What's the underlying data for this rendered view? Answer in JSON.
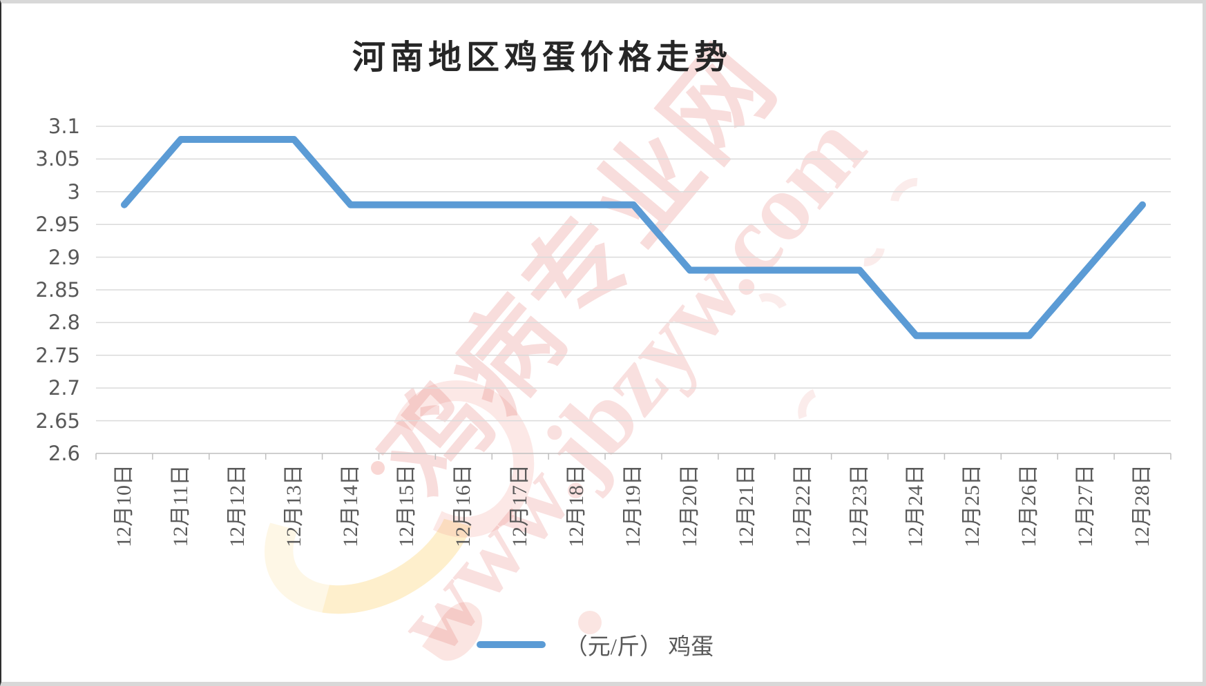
{
  "watermark": {
    "brand": "鸡病专业网",
    "url": "www.jbzyw.com"
  },
  "legend": {
    "label": "（元/斤） 鸡蛋"
  },
  "chart_data": {
    "type": "line",
    "title": "河南地区鸡蛋价格走势",
    "categories": [
      "12月10日",
      "12月11日",
      "12月12日",
      "12月13日",
      "12月14日",
      "12月15日",
      "12月16日",
      "12月17日",
      "12月18日",
      "12月19日",
      "12月20日",
      "12月21日",
      "12月22日",
      "12月23日",
      "12月24日",
      "12月25日",
      "12月26日",
      "12月27日",
      "12月28日"
    ],
    "series": [
      {
        "name": "鸡蛋",
        "unit": "元/斤",
        "values": [
          2.98,
          3.08,
          3.08,
          3.08,
          2.98,
          2.98,
          2.98,
          2.98,
          2.98,
          2.98,
          2.88,
          2.88,
          2.88,
          2.88,
          2.78,
          2.78,
          2.78,
          2.88,
          2.98
        ]
      }
    ],
    "ylim": [
      2.6,
      3.1
    ],
    "ytick_step": 0.05,
    "ytick_labels": [
      "3.1",
      "3.05",
      "3",
      "2.95",
      "2.9",
      "2.85",
      "2.8",
      "2.75",
      "2.7",
      "2.65",
      "2.6"
    ],
    "grid": true,
    "legend_position": "bottom",
    "colors": {
      "line": "#5B9BD5",
      "gridline": "#DADADA",
      "axis": "#BFBFBF",
      "tick_label": "#595959",
      "title": "#262626",
      "watermark_pink": "rgba(225,100,95,0.22)"
    }
  }
}
